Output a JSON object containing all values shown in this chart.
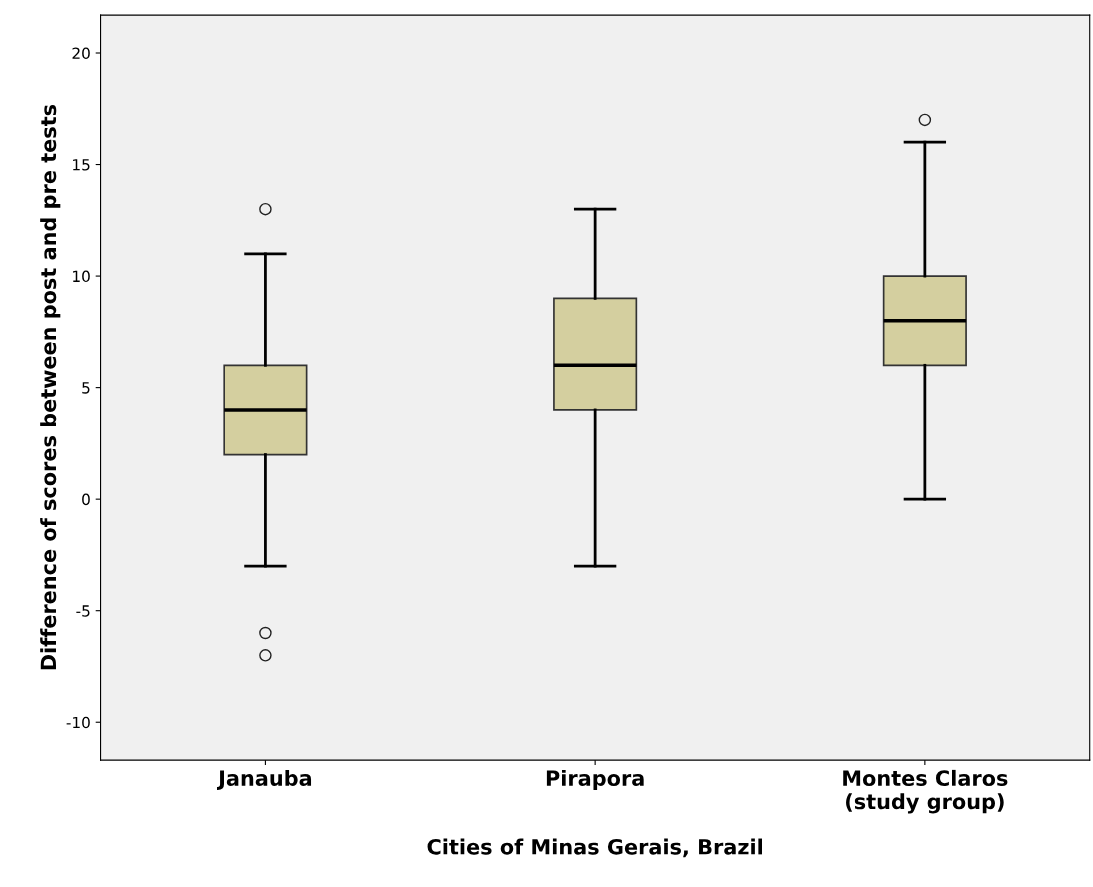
{
  "chart_data": {
    "type": "box",
    "xlabel": "Cities of Minas Gerais, Brazil",
    "ylabel": "Difference of scores between post and pre tests",
    "categories": [
      "Janauba",
      "Pirapora",
      "Montes Claros\n(study group)"
    ],
    "boxes": [
      {
        "low": -3,
        "q1": 2,
        "median": 4,
        "q3": 6,
        "high": 11,
        "outliers": [
          13,
          -6,
          -7
        ]
      },
      {
        "low": -3,
        "q1": 4,
        "median": 6,
        "q3": 9,
        "high": 13
      },
      {
        "low": 0,
        "q1": 6,
        "median": 8,
        "q3": 10,
        "high": 16,
        "outliers": [
          17
        ]
      }
    ],
    "color": "#d4cf9f",
    "ylim": [
      -11.7,
      21.7
    ],
    "yticks": [
      -10,
      -5,
      0,
      5,
      10,
      15,
      20
    ],
    "grid": false
  }
}
